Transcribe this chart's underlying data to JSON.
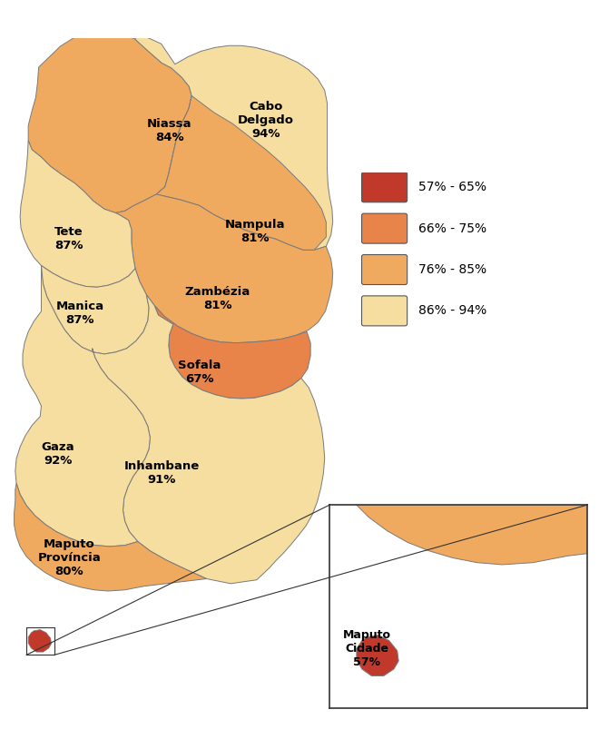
{
  "provinces": {
    "Niassa": {
      "value": 84,
      "label": "Niassa\n84%"
    },
    "Cabo Delgado": {
      "value": 94,
      "label": "Cabo\nDelgado\n94%"
    },
    "Nampula": {
      "value": 81,
      "label": "Nampula\n81%"
    },
    "Zambezia": {
      "value": 81,
      "label": "Zambézia\n81%"
    },
    "Tete": {
      "value": 87,
      "label": "Tete\n87%"
    },
    "Manica": {
      "value": 87,
      "label": "Manica\n87%"
    },
    "Sofala": {
      "value": 67,
      "label": "Sofala\n67%"
    },
    "Inhambane": {
      "value": 91,
      "label": "Inhambane\n91%"
    },
    "Gaza": {
      "value": 92,
      "label": "Gaza\n92%"
    },
    "Maputo Province": {
      "value": 80,
      "label": "Maputo\nProvíncia\n80%"
    },
    "Maputo City": {
      "value": 57,
      "label": "Maputo\nCidade\n57%"
    }
  },
  "color_ranges": [
    {
      "range": "57% - 65%",
      "color": "#c0392b",
      "min": 57,
      "max": 65
    },
    {
      "range": "66% - 75%",
      "color": "#e8834a",
      "min": 66,
      "max": 75
    },
    {
      "range": "76% - 85%",
      "color": "#f0aa60",
      "min": 76,
      "max": 85
    },
    {
      "range": "86% - 94%",
      "color": "#f5dea0",
      "min": 86,
      "max": 94
    }
  ],
  "background_color": "#ffffff",
  "border_color": "#7a7a7a",
  "label_fontsize": 9.5,
  "label_fontweight": "bold"
}
